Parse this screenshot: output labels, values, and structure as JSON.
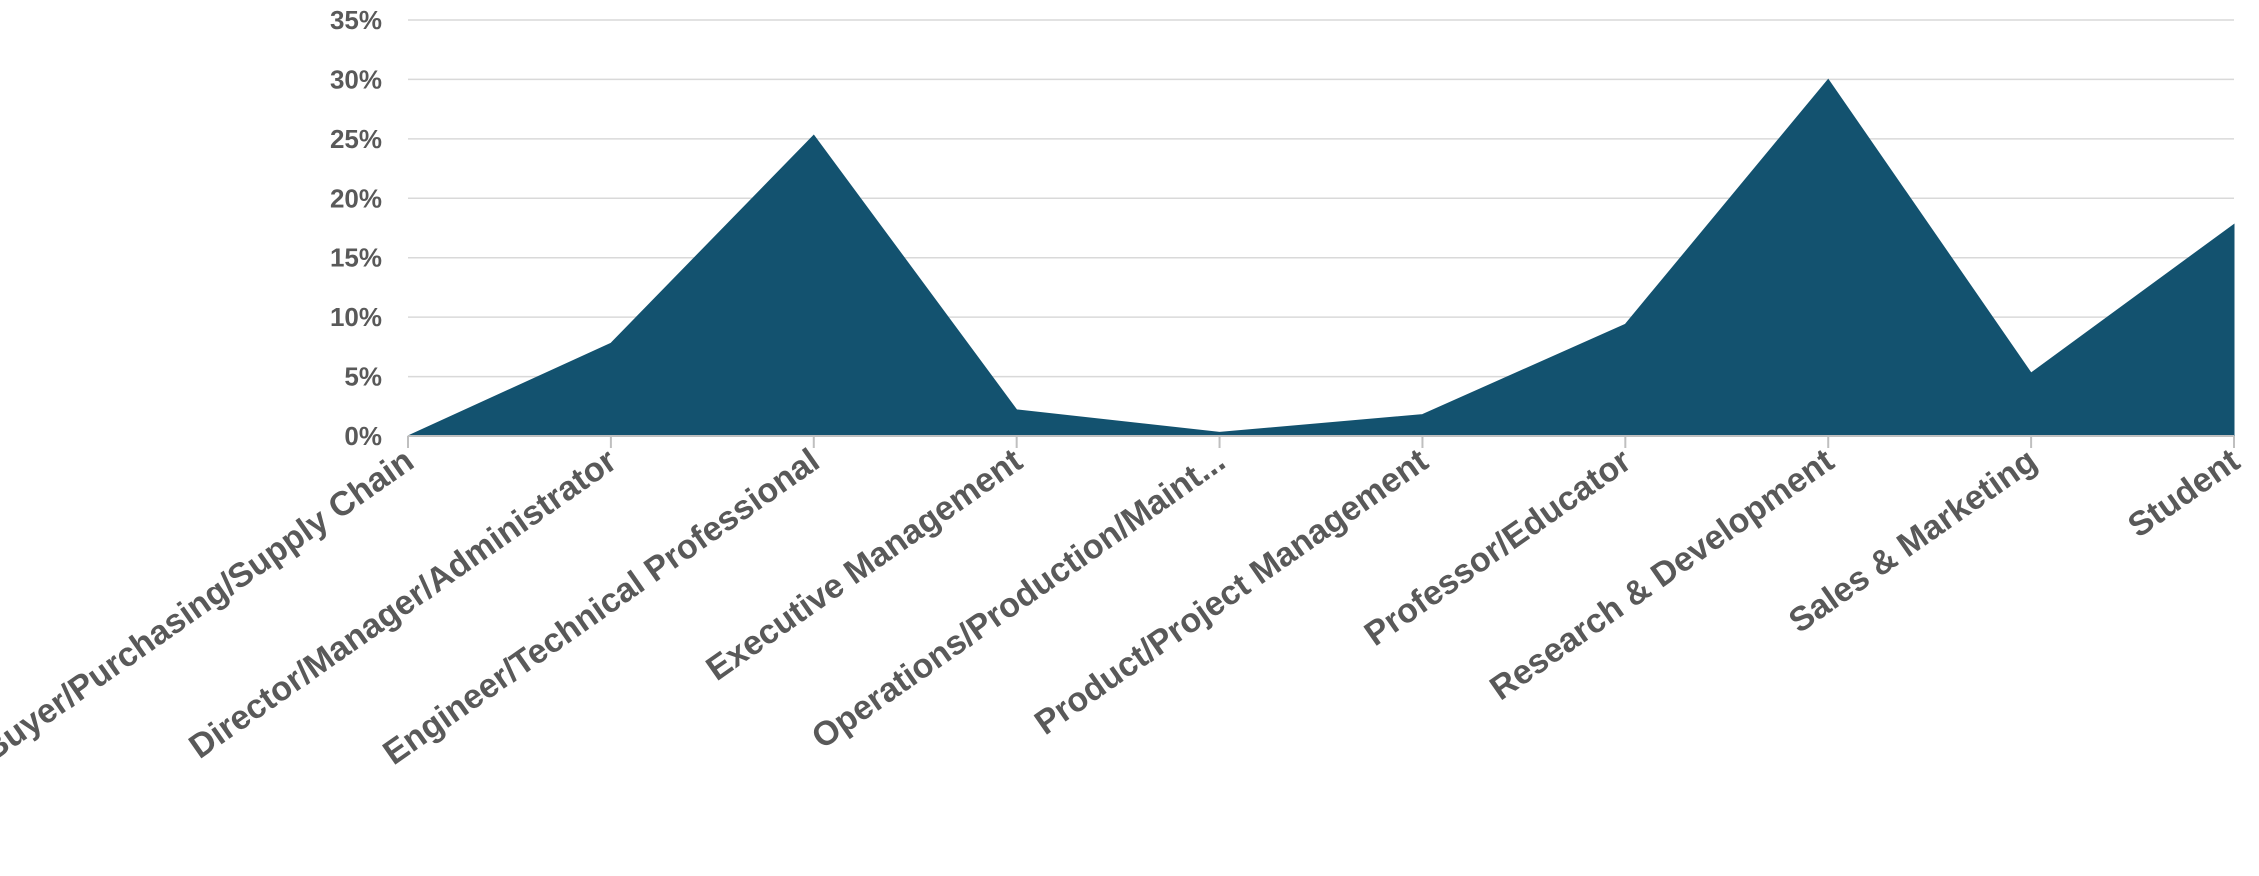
{
  "chart_data": {
    "type": "area",
    "categories": [
      "Buyer/Purchasing/Supply Chain",
      "Director/Manager/Administrator",
      "Engineer/Technical Professional",
      "Executive Management",
      "Operations/Production/Maint...",
      "Product/Project Management",
      "Professor/Educator",
      "Research & Development",
      "Sales & Marketing",
      "Student"
    ],
    "values": [
      0.0,
      7.8,
      25.3,
      2.2,
      0.3,
      1.8,
      9.4,
      30.0,
      5.3,
      17.8
    ],
    "y_tick_labels": [
      "0%",
      "5%",
      "10%",
      "15%",
      "20%",
      "25%",
      "30%",
      "35%"
    ],
    "ylim": [
      0,
      35
    ],
    "y_unit": "%",
    "grid": true,
    "legend": "none",
    "colors": {
      "fill": "#13526f",
      "grid": "#d9d9d9",
      "text": "#595959"
    }
  }
}
